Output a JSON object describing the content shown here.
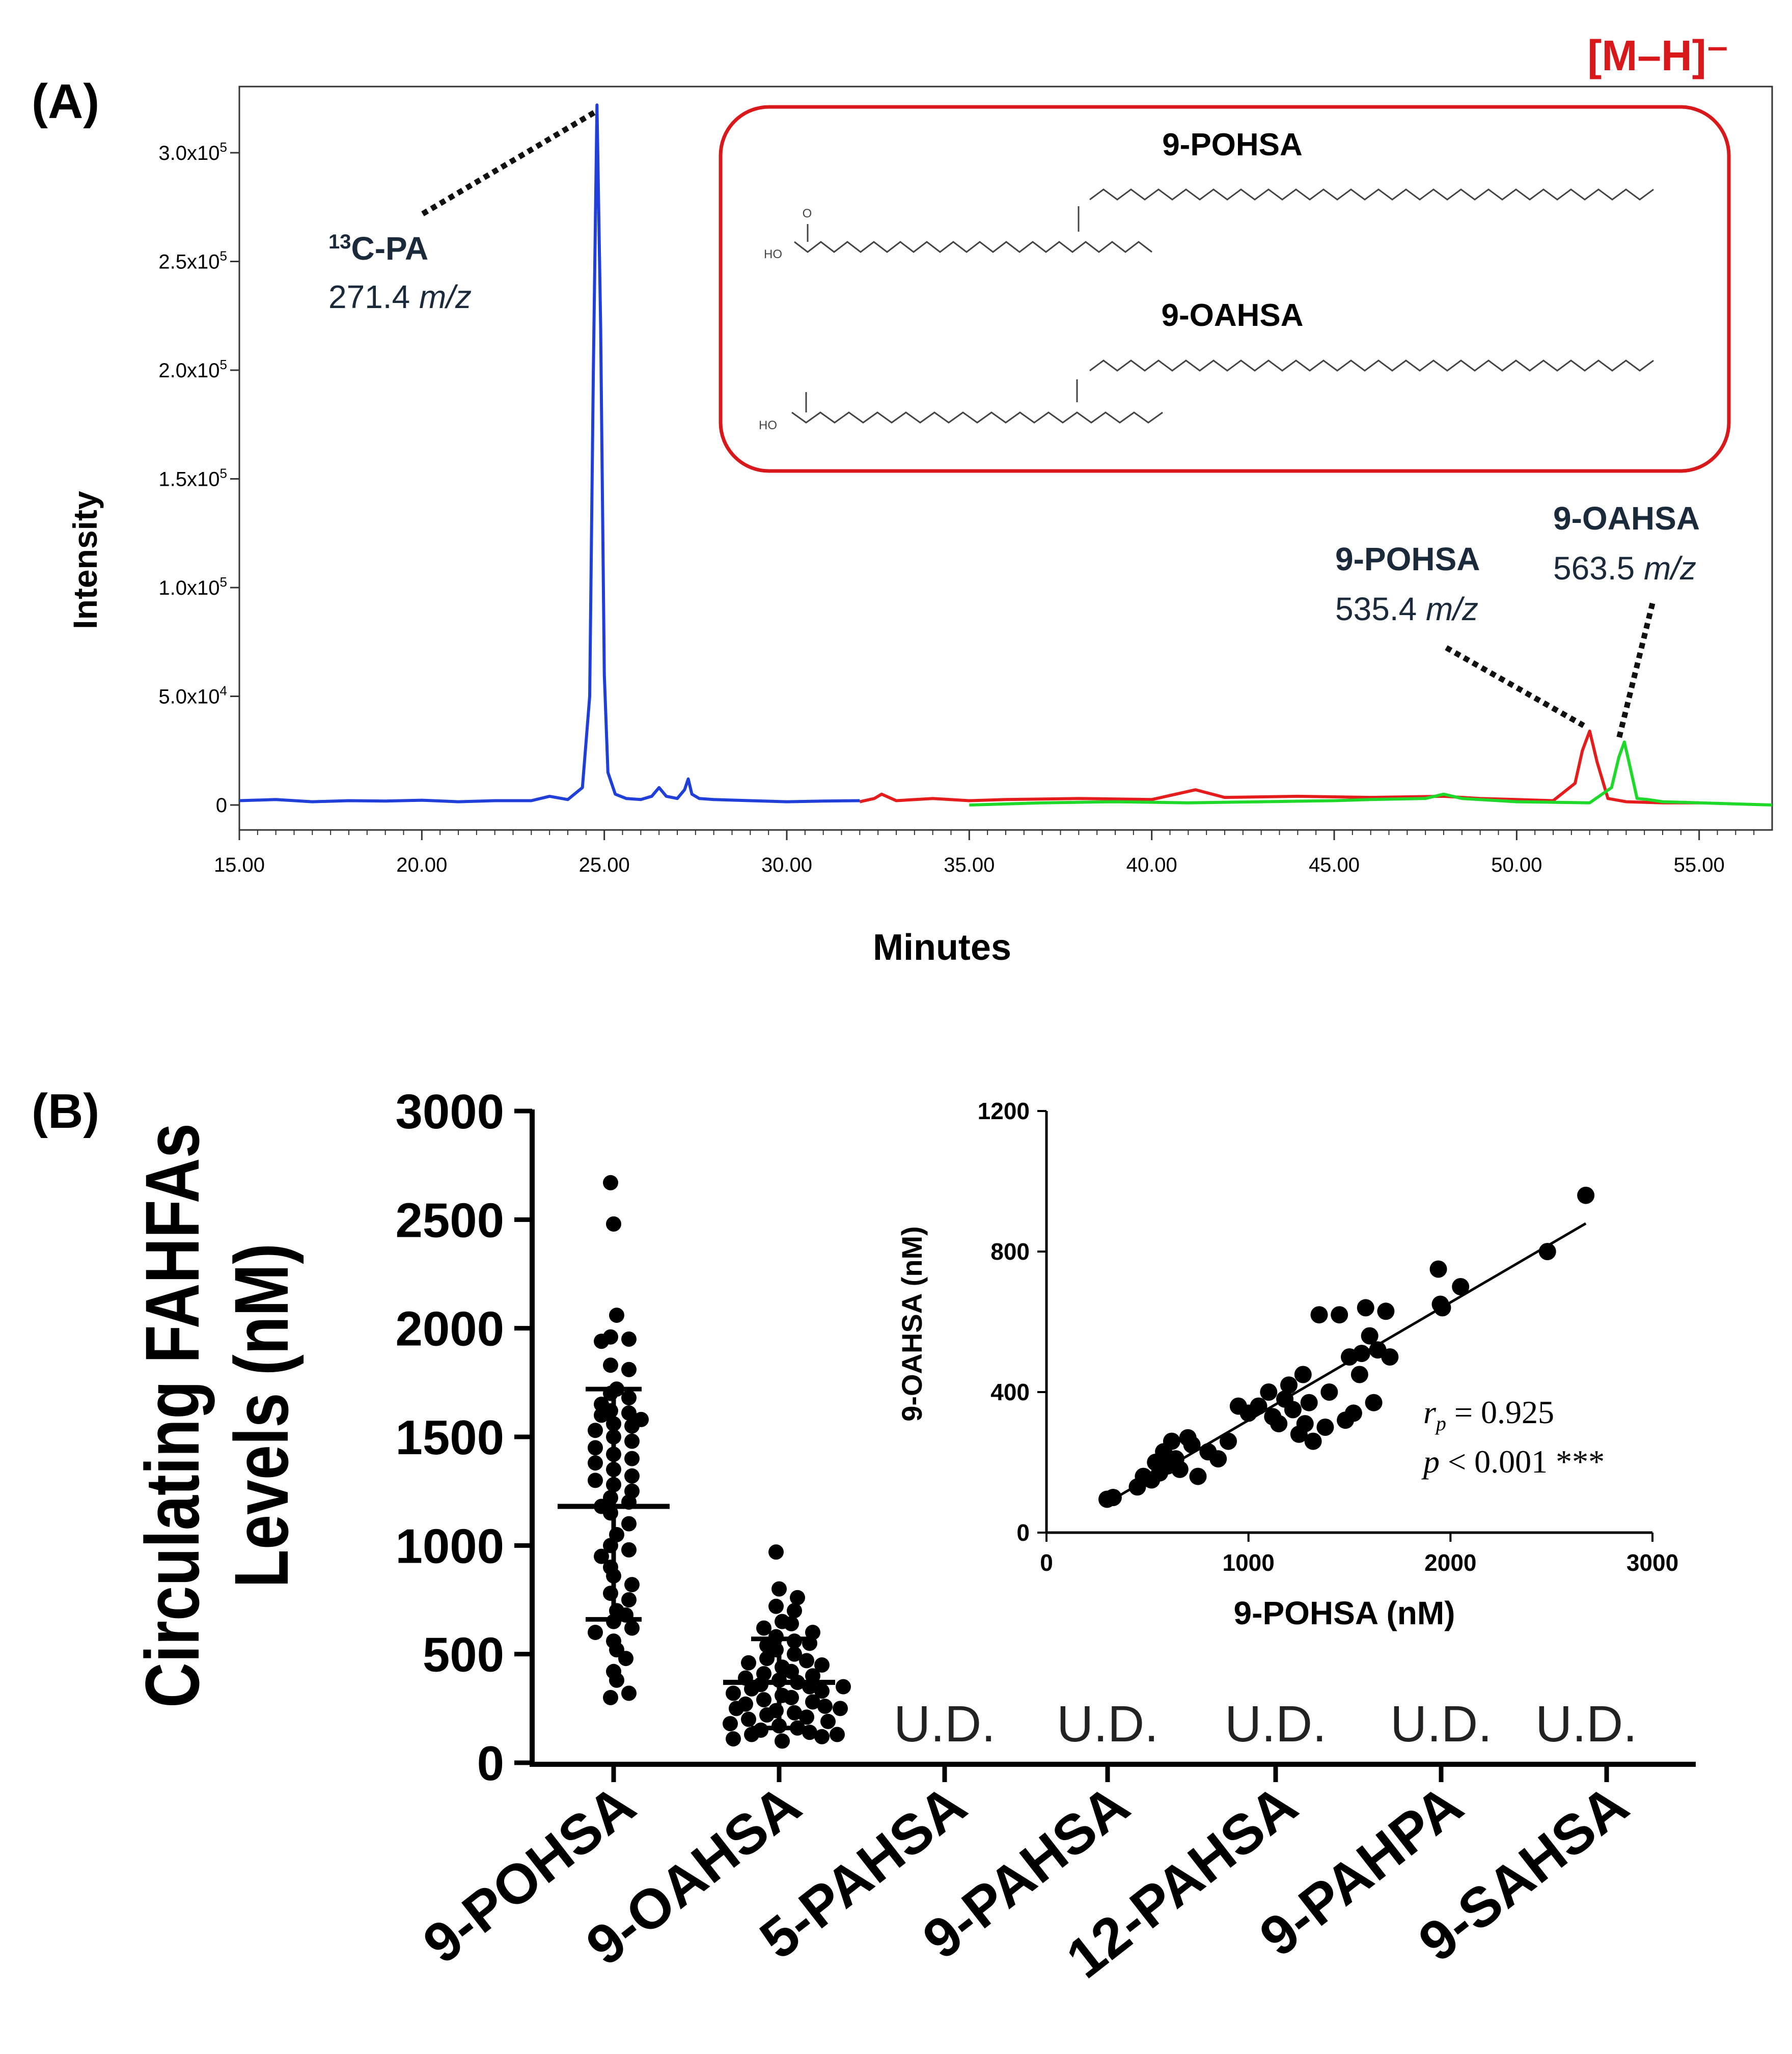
{
  "colors": {
    "blue": "#1f3fd8",
    "red": "#e51c1c",
    "green": "#1fd92a",
    "box_border": "#d9181c",
    "annotation_text": "#1a2a3a",
    "ion_label": "#d9181c",
    "black": "#000000"
  },
  "panel_a": {
    "label": "(A)",
    "ion_mode": "[M–H]⁻",
    "structure_box": {
      "title_1": "9-POHSA",
      "title_2": "9-OAHSA",
      "ho_1": "HO",
      "ho_2": "HO",
      "o_label": "O"
    },
    "annotations": {
      "pa_name": "13C-PA",
      "pa_sup": "13",
      "pa_base": "C-PA",
      "pa_mz_value": "271.4",
      "pohsa_name": "9-POHSA",
      "pohsa_mz_value": "535.4",
      "oahsa_name": "9-OAHSA",
      "oahsa_mz_value": "563.5",
      "mz_unit": "m/z"
    }
  },
  "panel_b": {
    "label": "(B)",
    "ud_label": "U.D.",
    "ud_labels": [
      "U.D.",
      "U.D.",
      "U.D.",
      "U.D.",
      "U.D."
    ],
    "inset_stats": {
      "r_symbol": "r",
      "r_sub": "p",
      "r_value": "= 0.925",
      "p_symbol": "p",
      "p_value": "< 0.001 ***"
    }
  },
  "chart_data": [
    {
      "id": "chromatogram",
      "type": "line",
      "title": "",
      "xlabel": "Minutes",
      "ylabel": "Intensity",
      "xlim": [
        15.0,
        57.0
      ],
      "ylim": [
        -12000,
        340000
      ],
      "x_ticks": [
        15,
        20,
        25,
        30,
        35,
        40,
        45,
        50,
        55
      ],
      "x_tick_labels": [
        "15.00",
        "20.00",
        "25.00",
        "30.00",
        "35.00",
        "40.00",
        "45.00",
        "50.00",
        "55.00"
      ],
      "y_ticks": [
        0,
        50000,
        100000,
        150000,
        200000,
        250000,
        300000
      ],
      "y_tick_labels": [
        {
          "base": "0",
          "sup": ""
        },
        {
          "base": "5.0x10",
          "sup": "4"
        },
        {
          "base": "1.0x10",
          "sup": "5"
        },
        {
          "base": "1.5x10",
          "sup": "5"
        },
        {
          "base": "2.0x10",
          "sup": "5"
        },
        {
          "base": "2.5x10",
          "sup": "5"
        },
        {
          "base": "3.0x10",
          "sup": "5"
        }
      ],
      "series": [
        {
          "name": "13C-PA (271.4 m/z)",
          "color": "#1f3fd8",
          "x": [
            15.0,
            16.0,
            17.0,
            18.0,
            19.0,
            20.0,
            21.0,
            22.0,
            23.0,
            23.5,
            24.0,
            24.4,
            24.6,
            24.7,
            24.8,
            24.9,
            25.0,
            25.1,
            25.3,
            25.6,
            26.0,
            26.3,
            26.5,
            26.7,
            27.0,
            27.2,
            27.3,
            27.4,
            27.6,
            28.0,
            29.0,
            30.0,
            31.0,
            32.0
          ],
          "y": [
            2000,
            2500,
            1500,
            2000,
            1800,
            2200,
            1500,
            2000,
            2000,
            4000,
            2500,
            8000,
            50000,
            200000,
            322000,
            220000,
            60000,
            15000,
            5000,
            3000,
            2500,
            4000,
            8000,
            4000,
            3000,
            7000,
            12000,
            5000,
            3000,
            2500,
            2000,
            1500,
            1800,
            2000
          ]
        },
        {
          "name": "9-POHSA (535.4 m/z)",
          "color": "#e51c1c",
          "x": [
            32.0,
            32.4,
            32.6,
            33.0,
            34.0,
            35.0,
            36.0,
            38.0,
            40.0,
            41.2,
            42.0,
            44.0,
            46.0,
            48.0,
            49.0,
            50.0,
            51.0,
            51.6,
            51.8,
            52.0,
            52.2,
            52.5,
            53.0,
            54.0,
            55.0
          ],
          "y": [
            1500,
            3000,
            5000,
            2000,
            3000,
            2000,
            2500,
            3000,
            2500,
            7000,
            3500,
            4000,
            3500,
            4000,
            3000,
            2500,
            2000,
            10000,
            25000,
            34000,
            20000,
            3000,
            1500,
            1000,
            1000
          ]
        },
        {
          "name": "9-OAHSA (563.5 m/z)",
          "color": "#1fd92a",
          "x": [
            35.0,
            37.0,
            39.0,
            41.0,
            43.0,
            45.0,
            46.0,
            47.5,
            48.0,
            48.5,
            50.0,
            52.0,
            52.6,
            52.8,
            52.95,
            53.1,
            53.3,
            53.6,
            54.0,
            55.0,
            56.0,
            57.0
          ],
          "y": [
            0,
            1000,
            1500,
            1000,
            1500,
            2000,
            2500,
            3000,
            5000,
            3000,
            1500,
            1000,
            8000,
            22000,
            29000,
            18000,
            3000,
            2500,
            1500,
            1000,
            500,
            0
          ]
        }
      ]
    },
    {
      "id": "fahfa-levels",
      "type": "scatter",
      "title": "",
      "xlabel": "",
      "ylabel": "Circulating FAHFAs Levels (nM)",
      "ylim": [
        0,
        3000
      ],
      "y_ticks": [
        0,
        500,
        1000,
        1500,
        2000,
        2500,
        3000
      ],
      "categories": [
        "9-POHSA",
        "9-OAHSA",
        "5-PAHSA",
        "9-PAHSA",
        "12-PAHSA",
        "9-PAHPA",
        "9-SAHSA"
      ],
      "groups": [
        {
          "category": "9-POHSA",
          "mean": 1180,
          "sd_low": 660,
          "sd_high": 1720,
          "values": [
            2670,
            2480,
            2060,
            1960,
            1950,
            1940,
            1830,
            1810,
            1720,
            1700,
            1680,
            1650,
            1620,
            1610,
            1600,
            1580,
            1560,
            1550,
            1530,
            1500,
            1480,
            1450,
            1420,
            1400,
            1380,
            1350,
            1320,
            1300,
            1280,
            1250,
            1220,
            1200,
            1180,
            1150,
            1100,
            1050,
            1000,
            980,
            950,
            900,
            860,
            820,
            780,
            750,
            700,
            680,
            650,
            620,
            600,
            560,
            520,
            480,
            420,
            380,
            300,
            320
          ]
        },
        {
          "category": "9-OAHSA",
          "mean": 370,
          "sd_low": 160,
          "sd_high": 570,
          "values": [
            970,
            800,
            760,
            720,
            700,
            650,
            640,
            620,
            600,
            580,
            560,
            540,
            520,
            500,
            480,
            470,
            460,
            440,
            420,
            410,
            400,
            390,
            380,
            370,
            360,
            350,
            340,
            330,
            320,
            310,
            300,
            290,
            280,
            270,
            260,
            250,
            240,
            230,
            220,
            210,
            200,
            190,
            180,
            170,
            160,
            150,
            140,
            130,
            120,
            110,
            100,
            130,
            250,
            350,
            450,
            550
          ]
        },
        {
          "category": "5-PAHSA",
          "values": [],
          "note": "U.D."
        },
        {
          "category": "9-PAHSA",
          "values": [],
          "note": "U.D."
        },
        {
          "category": "12-PAHSA",
          "values": [],
          "note": "U.D."
        },
        {
          "category": "9-PAHPA",
          "values": [],
          "note": "U.D."
        },
        {
          "category": "9-SAHSA",
          "values": [],
          "note": "U.D."
        }
      ]
    },
    {
      "id": "correlation-inset",
      "type": "scatter",
      "title": "",
      "xlabel": "9-POHSA (nM)",
      "ylabel": "9-OAHSA (nM)",
      "xlim": [
        0,
        3000
      ],
      "ylim": [
        0,
        1200
      ],
      "x_ticks": [
        0,
        1000,
        2000,
        3000
      ],
      "y_ticks": [
        0,
        400,
        800,
        1200
      ],
      "fit_line": {
        "x": [
          300,
          2670
        ],
        "y": [
          85,
          880
        ]
      },
      "stats": {
        "r_p": 0.925,
        "p": "< 0.001 ***"
      },
      "points": [
        [
          300,
          95
        ],
        [
          330,
          100
        ],
        [
          450,
          130
        ],
        [
          480,
          160
        ],
        [
          520,
          150
        ],
        [
          540,
          200
        ],
        [
          560,
          170
        ],
        [
          580,
          230
        ],
        [
          600,
          190
        ],
        [
          620,
          260
        ],
        [
          640,
          210
        ],
        [
          660,
          180
        ],
        [
          700,
          270
        ],
        [
          720,
          250
        ],
        [
          750,
          160
        ],
        [
          800,
          230
        ],
        [
          850,
          210
        ],
        [
          900,
          260
        ],
        [
          950,
          360
        ],
        [
          1000,
          340
        ],
        [
          1050,
          360
        ],
        [
          1100,
          400
        ],
        [
          1120,
          330
        ],
        [
          1150,
          310
        ],
        [
          1180,
          380
        ],
        [
          1200,
          420
        ],
        [
          1220,
          350
        ],
        [
          1250,
          280
        ],
        [
          1270,
          450
        ],
        [
          1280,
          310
        ],
        [
          1300,
          370
        ],
        [
          1320,
          260
        ],
        [
          1350,
          620
        ],
        [
          1380,
          300
        ],
        [
          1400,
          400
        ],
        [
          1450,
          620
        ],
        [
          1480,
          320
        ],
        [
          1500,
          500
        ],
        [
          1520,
          340
        ],
        [
          1550,
          450
        ],
        [
          1560,
          510
        ],
        [
          1580,
          640
        ],
        [
          1600,
          560
        ],
        [
          1620,
          370
        ],
        [
          1640,
          520
        ],
        [
          1680,
          630
        ],
        [
          1700,
          500
        ],
        [
          1940,
          750
        ],
        [
          1950,
          650
        ],
        [
          1960,
          640
        ],
        [
          2050,
          700
        ],
        [
          2480,
          800
        ],
        [
          2670,
          960
        ]
      ]
    }
  ]
}
